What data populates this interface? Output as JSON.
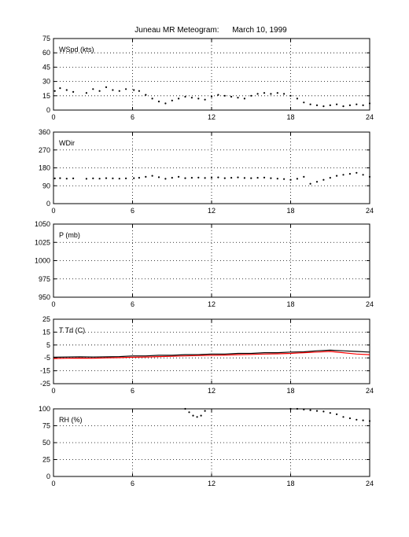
{
  "title": "Juneau MR Meteogram:      March 10, 1999",
  "chart_data": [
    {
      "type": "scatter",
      "label": "WSpd (kts)",
      "xlim": [
        0,
        24
      ],
      "ylim": [
        0,
        75
      ],
      "xticks": [
        "0",
        "6",
        "12",
        "18",
        "24"
      ],
      "yticks": [
        "0",
        "15",
        "30",
        "45",
        "60",
        "75"
      ],
      "grid": true,
      "series": [
        {
          "color": "#000000",
          "x": [
            0.1,
            0.5,
            1.0,
            1.5,
            2.5,
            3.0,
            3.5,
            4.0,
            4.5,
            5.0,
            5.5,
            6.1,
            6.5,
            7.0,
            7.5,
            8.0,
            8.5,
            9.0,
            9.5,
            10.0,
            10.5,
            11.0,
            11.5,
            12.0,
            12.5,
            13.0,
            13.5,
            14.0,
            14.5,
            15.0,
            15.5,
            16.0,
            16.5,
            17.0,
            17.5,
            18.0,
            18.5,
            19.0,
            19.5,
            20.0,
            20.5,
            21.0,
            21.5,
            22.0,
            22.5,
            23.0,
            23.5,
            24.0
          ],
          "y": [
            20,
            23,
            21,
            19,
            18,
            22,
            20,
            24,
            21,
            20,
            22,
            21,
            20,
            16,
            12,
            9,
            7,
            10,
            12,
            14,
            13,
            12,
            11,
            14,
            16,
            15,
            14,
            13,
            12,
            15,
            17,
            18,
            17,
            18,
            17,
            15,
            12,
            8,
            6,
            5,
            4,
            5,
            6,
            4,
            5,
            6,
            5,
            7
          ]
        }
      ]
    },
    {
      "type": "scatter",
      "label": "WDir",
      "xlim": [
        0,
        24
      ],
      "ylim": [
        0,
        360
      ],
      "xticks": [
        "0",
        "6",
        "12",
        "18",
        "24"
      ],
      "yticks": [
        "0",
        "90",
        "180",
        "270",
        "360"
      ],
      "grid": true,
      "series": [
        {
          "color": "#000000",
          "x": [
            0.1,
            0.5,
            1.0,
            1.5,
            2.5,
            3.0,
            3.5,
            4.0,
            4.5,
            5.0,
            5.5,
            6.1,
            6.5,
            7.0,
            7.5,
            8.0,
            8.5,
            9.0,
            9.5,
            10.0,
            10.5,
            11.0,
            11.5,
            12.0,
            12.5,
            13.0,
            13.5,
            14.0,
            14.5,
            15.0,
            15.5,
            16.0,
            16.5,
            17.0,
            17.5,
            18.0,
            18.5,
            19.0,
            19.5,
            20.0,
            20.5,
            21.0,
            21.5,
            22.0,
            22.5,
            23.0,
            23.5,
            24.0
          ],
          "y": [
            127,
            128,
            126,
            127,
            125,
            127,
            126,
            128,
            127,
            126,
            127,
            128,
            130,
            135,
            140,
            133,
            125,
            130,
            135,
            128,
            130,
            131,
            129,
            130,
            132,
            128,
            130,
            132,
            129,
            128,
            130,
            131,
            128,
            126,
            124,
            120,
            125,
            135,
            100,
            110,
            120,
            130,
            140,
            145,
            150,
            155,
            145,
            135
          ]
        }
      ]
    },
    {
      "type": "line",
      "label": "P (mb)",
      "xlim": [
        0,
        24
      ],
      "ylim": [
        950,
        1050
      ],
      "xticks": [
        "0",
        "6",
        "12",
        "18",
        "24"
      ],
      "yticks": [
        "950",
        "975",
        "1000",
        "1025",
        "1050"
      ],
      "grid": true,
      "series": []
    },
    {
      "type": "line",
      "label": "T Td (C)",
      "xlim": [
        0,
        24
      ],
      "ylim": [
        -25,
        25
      ],
      "xticks": [
        "0",
        "6",
        "12",
        "18",
        "24"
      ],
      "yticks": [
        "-25",
        "-15",
        "-5",
        "5",
        "15",
        "25"
      ],
      "grid": true,
      "series": [
        {
          "color": "#000000",
          "x": [
            0,
            1,
            2,
            3,
            4,
            5,
            6,
            7,
            8,
            9,
            10,
            11,
            12,
            13,
            14,
            15,
            16,
            17,
            18,
            19,
            20,
            21,
            22,
            23,
            24
          ],
          "y": [
            -4.5,
            -4.3,
            -4.2,
            -4.3,
            -4.2,
            -4.0,
            -3.5,
            -3.5,
            -3.0,
            -3.0,
            -2.5,
            -2.5,
            -2.0,
            -2.0,
            -1.5,
            -1.5,
            -1.0,
            -1.0,
            -0.5,
            -0.3,
            0.5,
            1.0,
            0.5,
            0,
            -0.5
          ]
        },
        {
          "color": "#ff0000",
          "x": [
            0,
            1,
            2,
            3,
            4,
            5,
            6,
            7,
            8,
            9,
            10,
            11,
            12,
            13,
            14,
            15,
            16,
            17,
            18,
            19,
            20,
            21,
            22,
            23,
            24
          ],
          "y": [
            -5.5,
            -5.3,
            -5.2,
            -5.3,
            -5.0,
            -4.8,
            -4.5,
            -4.3,
            -4.0,
            -3.8,
            -3.5,
            -3.2,
            -3.0,
            -2.8,
            -2.5,
            -2.3,
            -2.0,
            -1.8,
            -1.5,
            -1.0,
            -0.5,
            0,
            -1.0,
            -2.0,
            -2.5
          ]
        }
      ]
    },
    {
      "type": "scatter",
      "label": "RH (%)",
      "xlim": [
        0,
        24
      ],
      "ylim": [
        0,
        100
      ],
      "xticks": [
        "0",
        "6",
        "12",
        "18",
        "24"
      ],
      "yticks": [
        "0",
        "25",
        "50",
        "75",
        "100"
      ],
      "grid": true,
      "series": [
        {
          "color": "#000000",
          "x": [
            10.0,
            10.3,
            10.6,
            10.9,
            11.2,
            11.5,
            18.0,
            18.5,
            19.0,
            19.5,
            20.0,
            20.5,
            21.0,
            21.5,
            22.0,
            22.5,
            23.0,
            23.5,
            24.0
          ],
          "y": [
            100,
            95,
            90,
            88,
            90,
            97,
            100,
            100,
            99,
            98,
            97,
            96,
            94,
            92,
            88,
            86,
            84,
            83,
            82
          ]
        }
      ]
    }
  ]
}
